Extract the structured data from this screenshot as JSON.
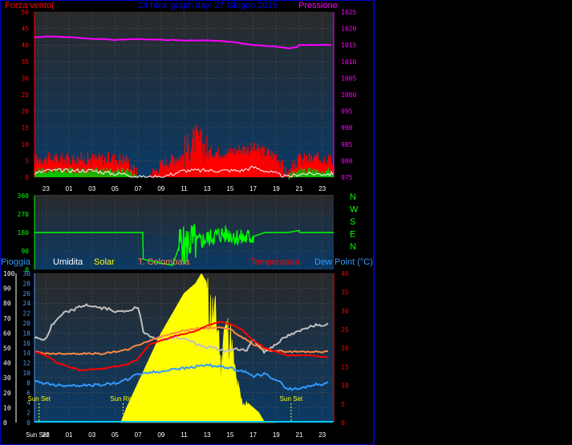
{
  "colors": {
    "background": "#000000",
    "frame": "#0000cc",
    "plot_top": "#2a2a2a",
    "plot_bottom": "#0a3a66",
    "grid": "#505050",
    "wind_axis": "#ff0000",
    "pressure": "#ff00ff",
    "title": "#0000ff",
    "gust": "#ff0000",
    "wind_avg": "#00cc00",
    "wind_line": "#ffffff",
    "direction": "#00ff00",
    "rain": "#4499ff",
    "humidity": "#c0c0c0",
    "solar": "#ffff00",
    "temp_colombaia": "#ff8844",
    "temperature": "#ff0000",
    "dew_point": "#3399ff",
    "sun_marker": "#ffff00"
  },
  "top_panel": {
    "title": "24 hour graph day:  27 Giugno 2015",
    "left_label": "Forza vento(",
    "right_label": "Pressione"
  },
  "direction_panel": {
    "compass": [
      "N",
      "W",
      "S",
      "E",
      "N"
    ]
  },
  "bottom_panel": {
    "labels": {
      "rain": "Pioggia",
      "humidity": "Umidita",
      "solar": "Solar",
      "colombaia": "T. Colombaia",
      "temperature": "Temperatura",
      "dew_point": "Dew Point (°C)"
    },
    "events": [
      "Sun Set",
      "Sun Rise",
      "Sun Set"
    ]
  },
  "chart_data": [
    {
      "type": "line",
      "panel": "top",
      "x_ticks": [
        "23",
        "01",
        "03",
        "05",
        "07",
        "09",
        "11",
        "13",
        "15",
        "17",
        "19",
        "21",
        "23"
      ],
      "y_left_ticks": [
        0,
        5,
        10,
        15,
        20,
        25,
        30,
        35,
        40,
        45,
        50
      ],
      "y_left_range": [
        0,
        50
      ],
      "y_right_ticks": [
        975,
        980,
        985,
        990,
        995,
        1000,
        1005,
        1010,
        1015,
        1020,
        1025
      ],
      "y_right_range": [
        975,
        1025
      ],
      "series": [
        {
          "name": "Pressione",
          "axis": "right",
          "x": [
            22,
            23,
            1,
            3,
            5,
            7,
            9,
            11,
            13,
            15,
            16,
            17,
            18,
            19,
            20,
            21,
            22,
            23,
            24
          ],
          "y": [
            1017.3,
            1017.6,
            1017.4,
            1016.9,
            1016.6,
            1016.8,
            1016.6,
            1016.4,
            1016.4,
            1016.0,
            1015.5,
            1015.0,
            1014.8,
            1014.5,
            1014.0,
            1014.4,
            1014.8,
            1015.2,
            1015.0
          ]
        }
      ],
      "gust_profile": {
        "x": [
          22,
          23,
          1,
          3,
          5,
          6,
          7,
          8,
          9,
          10,
          11,
          12,
          13,
          14,
          15,
          16,
          17,
          18,
          19,
          20,
          21,
          22,
          23,
          24
        ],
        "y": [
          5,
          5,
          5,
          5,
          5,
          5,
          0,
          0,
          3,
          5,
          6,
          10,
          7,
          7,
          7,
          8,
          8,
          7,
          6,
          0,
          5,
          5,
          5,
          5
        ]
      },
      "avg_profile": {
        "x": [
          22,
          23,
          1,
          3,
          5,
          6,
          7,
          8,
          9,
          10,
          11,
          12,
          13,
          14,
          15,
          16,
          17,
          18,
          19,
          20,
          21,
          22,
          23,
          24
        ],
        "y": [
          2,
          2,
          2,
          2,
          2,
          2,
          0,
          0,
          0,
          0,
          0,
          0,
          0,
          0,
          0,
          0,
          0,
          0,
          0,
          0,
          2,
          2,
          2,
          2
        ]
      },
      "wind_line": {
        "x": [
          22,
          23,
          1,
          3,
          5,
          6,
          7,
          8,
          9,
          10,
          11,
          12,
          13,
          14,
          15,
          16,
          17,
          18,
          19,
          20,
          21,
          22,
          23,
          24
        ],
        "y": [
          1,
          2,
          2,
          2,
          1,
          1,
          0,
          0,
          0,
          1,
          2,
          2,
          2,
          2,
          2,
          2,
          3,
          2,
          1,
          0,
          1,
          2,
          2,
          1
        ]
      }
    },
    {
      "type": "line",
      "panel": "direction",
      "x_ticks": [
        "23",
        "01",
        "03",
        "05",
        "07",
        "09",
        "11",
        "13",
        "15",
        "17",
        "19",
        "21",
        "23"
      ],
      "y_ticks": [
        0,
        90,
        180,
        270,
        360
      ],
      "y_range": [
        0,
        360
      ],
      "series": [
        {
          "name": "direction",
          "x": [
            22,
            23,
            1,
            3,
            5,
            7.4,
            7.45,
            9,
            10,
            10.8,
            11,
            11.5,
            12,
            13,
            14,
            15,
            16,
            17,
            18,
            19,
            20,
            21,
            22,
            23,
            24
          ],
          "y": [
            180,
            180,
            180,
            180,
            180,
            180,
            50,
            30,
            20,
            150,
            100,
            140,
            130,
            150,
            170,
            170,
            150,
            160,
            180,
            180,
            180,
            190,
            180,
            180,
            180
          ]
        }
      ]
    },
    {
      "type": "line",
      "panel": "bottom",
      "x_ticks": [
        "Sun Set",
        "23",
        "01",
        "03",
        "05",
        "07",
        "09",
        "11",
        "13",
        "15",
        "17",
        "19",
        "21",
        "23"
      ],
      "y_left_ticks": [
        0,
        10,
        20,
        30,
        40,
        50,
        60,
        70,
        80,
        90,
        100
      ],
      "y_left_range": [
        0,
        100
      ],
      "y_mid_ticks": [
        0,
        2,
        4,
        6,
        8,
        10,
        12,
        14,
        16,
        18,
        20,
        22,
        24,
        26,
        28,
        30
      ],
      "y_mid_range": [
        0,
        30
      ],
      "y_right_ticks": [
        0,
        5,
        10,
        15,
        20,
        25,
        30,
        35,
        40
      ],
      "y_right_range": [
        0,
        40
      ],
      "series": [
        {
          "name": "Pioggia",
          "axis": "left",
          "x": [
            22,
            24
          ],
          "y": [
            0,
            0
          ]
        },
        {
          "name": "Umidita",
          "axis": "left",
          "x": [
            22,
            22.5,
            23,
            23.5,
            24.5,
            25.5,
            26.5,
            27.5,
            28.5,
            29.5,
            30.5,
            31,
            31.5,
            32.5,
            33.5,
            34.5,
            35.5,
            36.5,
            37.5,
            38.5,
            39.5,
            40.5,
            41,
            42,
            43,
            44,
            45,
            46,
            47.5
          ],
          "y": [
            57,
            56,
            56,
            65,
            73,
            76,
            79,
            77,
            76,
            74,
            76,
            77,
            60,
            57,
            56,
            57,
            55,
            51,
            50,
            48,
            49,
            49,
            56,
            47,
            53,
            58,
            61,
            65,
            66
          ]
        },
        {
          "name": "Solar",
          "axis": "mid",
          "x": [
            29.5,
            30,
            31,
            32,
            33,
            34,
            35,
            36,
            36.5,
            37,
            37.5,
            38,
            38.2,
            38.4,
            39,
            39.5,
            40,
            41,
            41.5,
            42,
            43
          ],
          "y": [
            0,
            3,
            8,
            13,
            18,
            22,
            26,
            28,
            30,
            28,
            25,
            22,
            10,
            22,
            20,
            10,
            5,
            3,
            2,
            0,
            0
          ]
        },
        {
          "name": "T. Colombaia",
          "axis": "right",
          "x": [
            22,
            23,
            24,
            26,
            28,
            30,
            32,
            34,
            36,
            38,
            39,
            40,
            41,
            42,
            44,
            46,
            47.5
          ],
          "y": [
            19,
            18.5,
            18.5,
            18.5,
            18.5,
            19.5,
            22,
            24,
            25.2,
            25.5,
            25,
            23,
            21,
            19.5,
            19,
            19,
            19
          ]
        },
        {
          "name": "Temperatura",
          "axis": "right",
          "x": [
            22,
            23,
            24,
            25,
            26,
            28,
            30,
            31,
            32,
            34,
            36,
            37,
            38,
            39,
            40,
            41,
            42,
            43,
            44,
            46,
            47.5
          ],
          "y": [
            19,
            18,
            16,
            15,
            14,
            14.5,
            15.5,
            17,
            21,
            23,
            24.5,
            26,
            27,
            26.5,
            25,
            22,
            20,
            19,
            18,
            18,
            17.5
          ]
        },
        {
          "name": "Dew Point (°C)",
          "axis": "right",
          "x": [
            22,
            23,
            24,
            25,
            27,
            29,
            30,
            31,
            32,
            33,
            34,
            35,
            36,
            37,
            38,
            39,
            40,
            41,
            42,
            43,
            44,
            45,
            46,
            47.5
          ],
          "y": [
            11,
            10.5,
            10,
            10,
            10,
            10.5,
            11.5,
            13,
            13.5,
            13.5,
            14.5,
            14.5,
            15,
            15.5,
            15,
            14.5,
            14,
            12.5,
            13,
            11.5,
            9,
            9,
            10,
            10.5
          ]
        }
      ]
    }
  ]
}
